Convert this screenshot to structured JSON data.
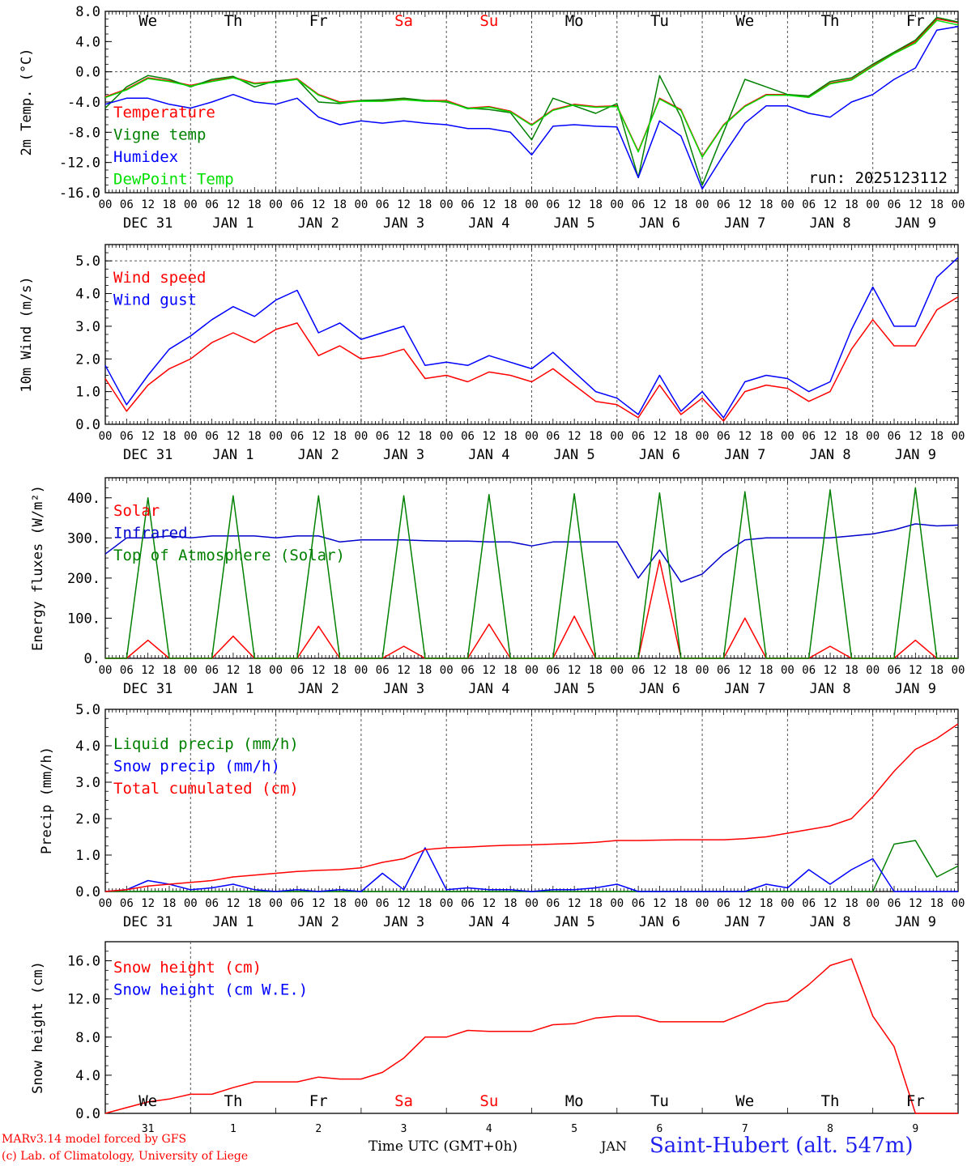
{
  "run_label": "run: 2025123112",
  "footer": {
    "credit_line1": "MARv3.14 model forced by GFS",
    "credit_line2": "(c) Lab. of Climatology, University of Liege",
    "time_axis": "Time UTC (GMT+0h)",
    "month": "JAN",
    "station": "Saint-Hubert (alt. 547m)"
  },
  "colors": {
    "red": "#ff0000",
    "green": "#008000",
    "blue": "#0000ff",
    "lime": "#00e000",
    "navy": "#0000cc",
    "frame": "#000000",
    "grid": "#555555"
  },
  "time_axis": {
    "hour_labels": [
      "00",
      "06",
      "12",
      "18"
    ],
    "date_labels": [
      "DEC 31",
      "JAN  1",
      "JAN  2",
      "JAN  3",
      "JAN  4",
      "JAN  5",
      "JAN  6",
      "JAN  7",
      "JAN  8",
      "JAN  9"
    ],
    "weekday_labels": [
      "We",
      "Th",
      "Fr",
      "Sa",
      "Su",
      "Mo",
      "Tu",
      "We",
      "Th",
      "Fr"
    ],
    "weekend_days": [
      3,
      4
    ],
    "snow_day_numbers": [
      "31",
      "1",
      "2",
      "3",
      "4",
      "5",
      "6",
      "7",
      "8",
      "9"
    ],
    "start": "2025-12-31T00:00Z",
    "end": "2026-01-10T00:00Z"
  },
  "chart_data": [
    {
      "type": "line",
      "ylabel": "2m Temp. (°C)",
      "ylim": [
        -16,
        8
      ],
      "yticks": [
        "8.0",
        "4.0",
        "0.0",
        "-4.0",
        "-8.0",
        "-12.0",
        "-16.0"
      ],
      "ytick_values": [
        8,
        4,
        0,
        -4,
        -8,
        -12,
        -16
      ],
      "dashed_ref": [
        0
      ],
      "x_hours": [
        0,
        6,
        12,
        18,
        24,
        30,
        36,
        42,
        48,
        54,
        60,
        66,
        72,
        78,
        84,
        90,
        96,
        102,
        108,
        114,
        120,
        126,
        132,
        138,
        144,
        150,
        156,
        162,
        168,
        174,
        180,
        186,
        192,
        198,
        204,
        210,
        216,
        222,
        228,
        234,
        240
      ],
      "series": [
        {
          "name": "Temperature",
          "color": "red",
          "values": [
            -3.3,
            -2.3,
            -0.8,
            -1.2,
            -1.8,
            -1.2,
            -0.7,
            -1.5,
            -1.3,
            -0.9,
            -3.0,
            -4.0,
            -3.8,
            -3.8,
            -3.6,
            -3.8,
            -3.8,
            -4.8,
            -4.6,
            -5.2,
            -7.0,
            -5.0,
            -4.3,
            -4.6,
            -4.5,
            -10.5,
            -3.5,
            -5.0,
            -11.2,
            -7.0,
            -4.5,
            -3.0,
            -3.0,
            -3.3,
            -1.5,
            -1.0,
            0.8,
            2.5,
            4.0,
            7.0,
            6.5
          ]
        },
        {
          "name": "Vigne temp",
          "color": "green",
          "values": [
            -4.8,
            -2.0,
            -0.5,
            -1.0,
            -2.0,
            -1.0,
            -0.6,
            -2.0,
            -1.2,
            -1.0,
            -4.0,
            -4.2,
            -3.8,
            -3.7,
            -3.5,
            -3.8,
            -4.0,
            -4.8,
            -5.0,
            -5.4,
            -9.0,
            -3.5,
            -4.5,
            -5.5,
            -4.2,
            -14.0,
            -0.5,
            -6.0,
            -15.0,
            -8.0,
            -1.0,
            -2.0,
            -3.0,
            -3.2,
            -1.3,
            -0.8,
            1.0,
            2.6,
            4.2,
            7.2,
            6.6
          ]
        },
        {
          "name": "Humidex",
          "color": "blue",
          "values": [
            -4.3,
            -3.5,
            -3.5,
            -4.3,
            -4.8,
            -4.0,
            -3.0,
            -4.0,
            -4.3,
            -3.5,
            -6.0,
            -7.0,
            -6.5,
            -6.8,
            -6.5,
            -6.8,
            -7.0,
            -7.5,
            -7.5,
            -8.0,
            -11.0,
            -7.2,
            -7.0,
            -7.2,
            -7.3,
            -14.0,
            -6.5,
            -8.5,
            -15.5,
            -11.0,
            -6.8,
            -4.5,
            -4.5,
            -5.5,
            -6.0,
            -4.0,
            -3.0,
            -1.0,
            0.5,
            5.5,
            6.0
          ]
        },
        {
          "name": "DewPoint Temp",
          "color": "lime",
          "values": [
            -3.4,
            -2.4,
            -0.9,
            -1.3,
            -1.9,
            -1.3,
            -0.8,
            -1.6,
            -1.4,
            -1.0,
            -3.1,
            -4.1,
            -3.9,
            -3.9,
            -3.7,
            -3.9,
            -3.9,
            -4.9,
            -4.7,
            -5.3,
            -7.1,
            -5.1,
            -4.4,
            -4.7,
            -4.6,
            -10.6,
            -3.6,
            -5.1,
            -11.3,
            -7.1,
            -4.6,
            -3.1,
            -3.1,
            -3.4,
            -1.6,
            -1.1,
            0.7,
            2.4,
            3.8,
            6.8,
            6.2
          ]
        }
      ]
    },
    {
      "type": "line",
      "ylabel": "10m Wind (m/s)",
      "ylim": [
        0,
        5.5
      ],
      "yticks": [
        "5.0",
        "4.0",
        "3.0",
        "2.0",
        "1.0",
        "0.0"
      ],
      "ytick_values": [
        5,
        4,
        3,
        2,
        1,
        0
      ],
      "dashed_ref": [
        5
      ],
      "x_hours": [
        0,
        6,
        12,
        18,
        24,
        30,
        36,
        42,
        48,
        54,
        60,
        66,
        72,
        78,
        84,
        90,
        96,
        102,
        108,
        114,
        120,
        126,
        132,
        138,
        144,
        150,
        156,
        162,
        168,
        174,
        180,
        186,
        192,
        198,
        204,
        210,
        216,
        222,
        228,
        234,
        240
      ],
      "series": [
        {
          "name": "Wind speed",
          "color": "red",
          "values": [
            1.4,
            0.4,
            1.2,
            1.7,
            2.0,
            2.5,
            2.8,
            2.5,
            2.9,
            3.1,
            2.1,
            2.4,
            2.0,
            2.1,
            2.3,
            1.4,
            1.5,
            1.3,
            1.6,
            1.5,
            1.3,
            1.7,
            1.2,
            0.7,
            0.6,
            0.2,
            1.2,
            0.3,
            0.8,
            0.1,
            1.0,
            1.2,
            1.1,
            0.7,
            1.0,
            2.3,
            3.2,
            2.4,
            2.4,
            3.5,
            3.9
          ]
        },
        {
          "name": "Wind gust",
          "color": "blue",
          "values": [
            1.8,
            0.6,
            1.5,
            2.3,
            2.7,
            3.2,
            3.6,
            3.3,
            3.8,
            4.1,
            2.8,
            3.1,
            2.6,
            2.8,
            3.0,
            1.8,
            1.9,
            1.8,
            2.1,
            1.9,
            1.7,
            2.2,
            1.6,
            1.0,
            0.8,
            0.3,
            1.5,
            0.4,
            1.0,
            0.2,
            1.3,
            1.5,
            1.4,
            1.0,
            1.3,
            2.9,
            4.2,
            3.0,
            3.0,
            4.5,
            5.1
          ]
        }
      ]
    },
    {
      "type": "line",
      "ylabel": "Energy fluxes (W/m²)",
      "ylim": [
        0,
        450
      ],
      "yticks": [
        "400.",
        "300.",
        "200.",
        "100.",
        "0."
      ],
      "ytick_values": [
        400,
        300,
        200,
        100,
        0
      ],
      "x_hours": [
        0,
        6,
        12,
        18,
        24,
        30,
        36,
        42,
        48,
        54,
        60,
        66,
        72,
        78,
        84,
        90,
        96,
        102,
        108,
        114,
        120,
        126,
        132,
        138,
        144,
        150,
        156,
        162,
        168,
        174,
        180,
        186,
        192,
        198,
        204,
        210,
        216,
        222,
        228,
        234,
        240
      ],
      "series": [
        {
          "name": "Solar",
          "color": "red",
          "values": [
            0,
            0,
            45,
            0,
            0,
            0,
            55,
            0,
            0,
            0,
            80,
            0,
            0,
            0,
            30,
            0,
            0,
            0,
            85,
            0,
            0,
            0,
            105,
            0,
            0,
            0,
            245,
            0,
            0,
            0,
            100,
            0,
            0,
            0,
            30,
            0,
            0,
            0,
            45,
            0,
            0
          ]
        },
        {
          "name": "Infrared",
          "color": "navy",
          "values": [
            260,
            300,
            300,
            305,
            300,
            305,
            305,
            305,
            300,
            305,
            305,
            290,
            295,
            295,
            295,
            293,
            292,
            292,
            290,
            290,
            280,
            290,
            290,
            290,
            290,
            200,
            270,
            190,
            210,
            260,
            295,
            300,
            300,
            300,
            300,
            305,
            310,
            320,
            335,
            330,
            332
          ]
        },
        {
          "name": "Top of Atmosphere (Solar)",
          "color": "green",
          "values": [
            0,
            0,
            400,
            0,
            0,
            0,
            405,
            0,
            0,
            0,
            405,
            0,
            0,
            0,
            405,
            0,
            0,
            0,
            408,
            0,
            0,
            0,
            410,
            0,
            0,
            0,
            412,
            0,
            0,
            0,
            415,
            0,
            0,
            0,
            420,
            0,
            0,
            0,
            425,
            0,
            0
          ]
        }
      ]
    },
    {
      "type": "line",
      "ylabel": "Precip (mm/h)",
      "ylim": [
        0,
        5
      ],
      "yticks": [
        "5.0",
        "4.0",
        "3.0",
        "2.0",
        "1.0",
        "0.0"
      ],
      "ytick_values": [
        5,
        4,
        3,
        2,
        1,
        0
      ],
      "x_hours": [
        0,
        6,
        12,
        18,
        24,
        30,
        36,
        42,
        48,
        54,
        60,
        66,
        72,
        78,
        84,
        90,
        96,
        102,
        108,
        114,
        120,
        126,
        132,
        138,
        144,
        150,
        156,
        162,
        168,
        174,
        180,
        186,
        192,
        198,
        204,
        210,
        216,
        222,
        228,
        234,
        240
      ],
      "series": [
        {
          "name": "Liquid precip (mm/h)",
          "color": "green",
          "values": [
            0,
            0,
            0,
            0,
            0,
            0,
            0,
            0,
            0,
            0,
            0,
            0,
            0,
            0,
            0,
            0,
            0,
            0,
            0,
            0,
            0,
            0,
            0,
            0,
            0,
            0,
            0,
            0,
            0,
            0,
            0,
            0,
            0,
            0,
            0,
            0,
            0,
            1.3,
            1.4,
            0.4,
            0.7
          ]
        },
        {
          "name": "Snow precip (mm/h)",
          "color": "blue",
          "values": [
            0,
            0.05,
            0.3,
            0.2,
            0.05,
            0.1,
            0.2,
            0.05,
            0,
            0.05,
            0,
            0.05,
            0,
            0.5,
            0.05,
            1.2,
            0.05,
            0.1,
            0.05,
            0.05,
            0,
            0.05,
            0.05,
            0.1,
            0.2,
            0,
            0,
            0,
            0,
            0,
            0,
            0.2,
            0.1,
            0.6,
            0.2,
            0.6,
            0.9,
            0,
            0,
            0,
            0
          ]
        },
        {
          "name": "Total cumulated (cm)",
          "color": "red",
          "values": [
            0,
            0.05,
            0.15,
            0.2,
            0.25,
            0.3,
            0.4,
            0.45,
            0.5,
            0.55,
            0.58,
            0.6,
            0.65,
            0.8,
            0.9,
            1.15,
            1.2,
            1.22,
            1.25,
            1.27,
            1.28,
            1.3,
            1.32,
            1.35,
            1.4,
            1.4,
            1.41,
            1.42,
            1.42,
            1.42,
            1.45,
            1.5,
            1.6,
            1.7,
            1.8,
            2.0,
            2.6,
            3.3,
            3.9,
            4.2,
            4.6
          ]
        }
      ]
    },
    {
      "type": "line",
      "ylabel": "Snow height (cm)",
      "ylim": [
        0,
        18
      ],
      "yticks": [
        "16.0",
        "12.0",
        "8.0",
        "4.0",
        "0.0"
      ],
      "ytick_values": [
        16,
        12,
        8,
        4,
        0
      ],
      "x_hours": [
        0,
        6,
        12,
        18,
        24,
        30,
        36,
        42,
        48,
        54,
        60,
        66,
        72,
        78,
        84,
        90,
        96,
        102,
        108,
        114,
        120,
        126,
        132,
        138,
        144,
        150,
        156,
        162,
        168,
        174,
        180,
        186,
        192,
        198,
        204,
        210,
        216,
        222,
        228,
        234,
        240
      ],
      "series": [
        {
          "name": "Snow height (cm)",
          "color": "red",
          "values": [
            0,
            0.6,
            1.2,
            1.5,
            2.0,
            2.0,
            2.7,
            3.3,
            3.3,
            3.3,
            3.8,
            3.6,
            3.6,
            4.3,
            5.8,
            8.0,
            8.0,
            8.7,
            8.6,
            8.6,
            8.6,
            9.3,
            9.4,
            10.0,
            10.2,
            10.2,
            9.6,
            9.6,
            9.6,
            9.6,
            10.5,
            11.5,
            11.8,
            13.5,
            15.5,
            16.2,
            10.2,
            7.0,
            0,
            0,
            0
          ]
        },
        {
          "name": "Snow height (cm W.E.)",
          "color": "blue",
          "values": []
        }
      ]
    }
  ]
}
